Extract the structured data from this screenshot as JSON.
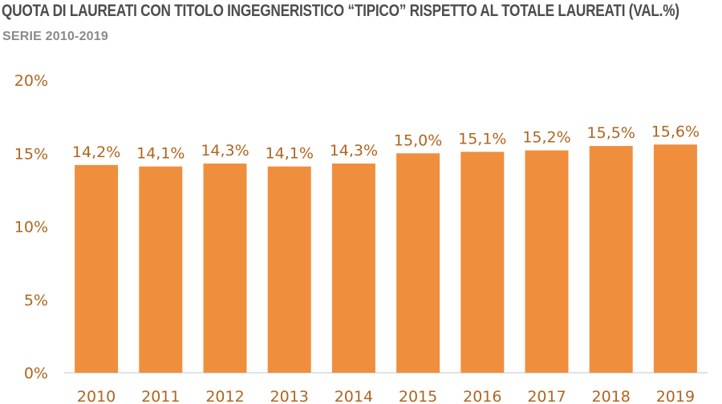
{
  "title": "QUOTA DI LAUREATI CON TITOLO INGEGNERISTICO “TIPICO” RISPETTO AL TOTALE LAUREATI (VAL.%)",
  "subtitle": "SERIE 2010-2019",
  "colors": {
    "bar": "#ef8f3d",
    "axis": "#d9d9d9",
    "text": "#b0651f"
  },
  "chart_data": {
    "type": "bar",
    "title": "QUOTA DI LAUREATI CON TITOLO INGEGNERISTICO “TIPICO” RISPETTO AL TOTALE LAUREATI (VAL.%)",
    "subtitle": "SERIE 2010-2019",
    "categories": [
      "2010",
      "2011",
      "2012",
      "2013",
      "2014",
      "2015",
      "2016",
      "2017",
      "2018",
      "2019"
    ],
    "values": [
      14.2,
      14.1,
      14.3,
      14.1,
      14.3,
      15.0,
      15.1,
      15.2,
      15.5,
      15.6
    ],
    "data_labels": [
      "14,2%",
      "14,1%",
      "14,3%",
      "14,1%",
      "14,3%",
      "15,0%",
      "15,1%",
      "15,2%",
      "15,5%",
      "15,6%"
    ],
    "ylim": [
      0,
      20
    ],
    "yticks": [
      0,
      5,
      10,
      15,
      20
    ],
    "ytick_labels": [
      "0%",
      "5%",
      "10%",
      "15%",
      "20%"
    ],
    "grid": false,
    "legend": "none"
  }
}
